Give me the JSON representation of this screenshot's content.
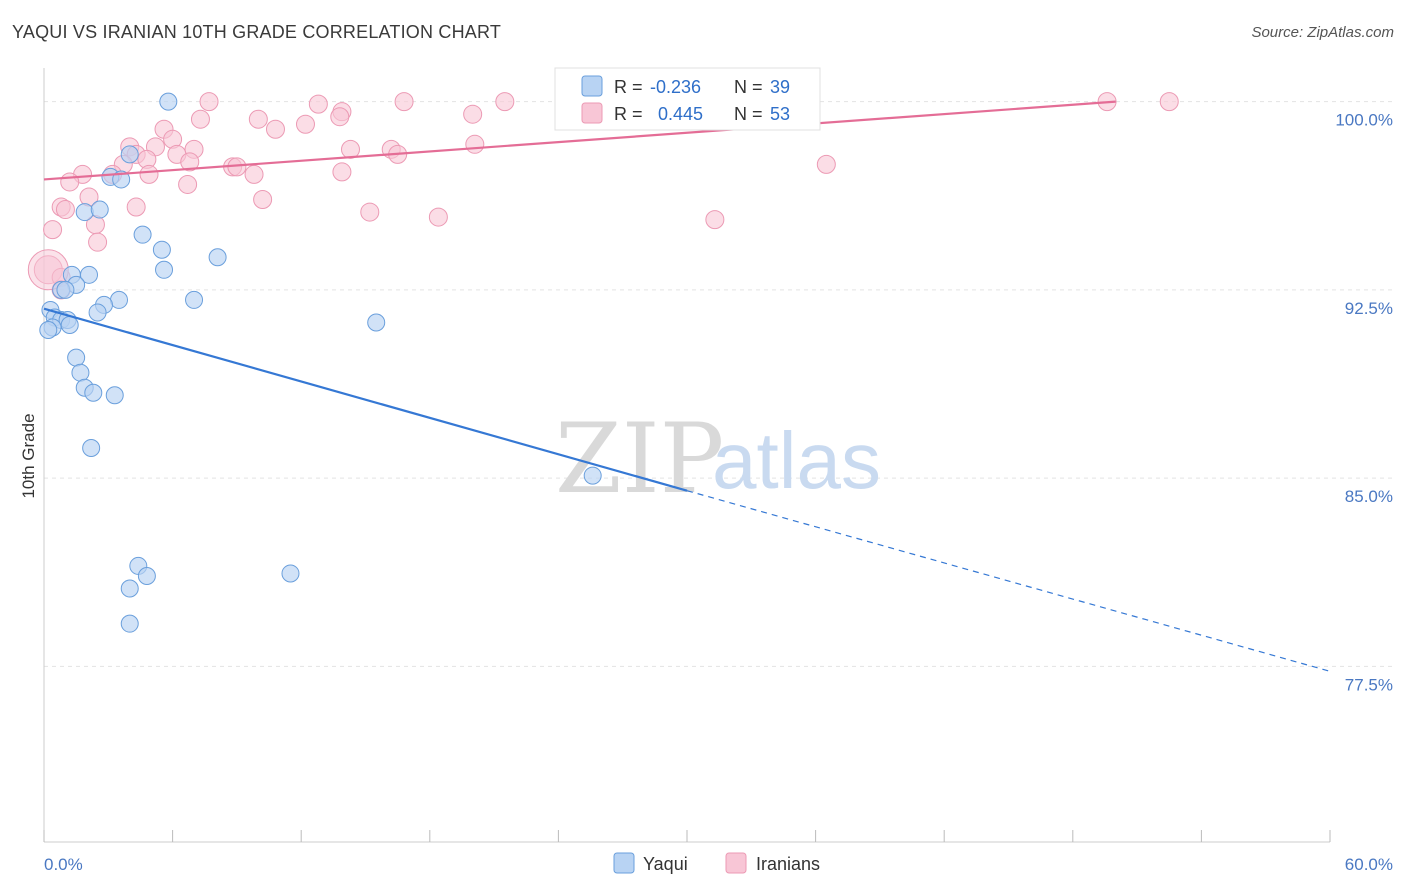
{
  "title": "YAQUI VS IRANIAN 10TH GRADE CORRELATION CHART",
  "source": "Source: ZipAtlas.com",
  "watermark": {
    "zip": "ZIP",
    "atlas": "atlas"
  },
  "colors": {
    "yaqui_fill": "#b8d3f3",
    "yaqui_stroke": "#6a9fdc",
    "yaqui_line": "#3578d4",
    "iranian_fill": "#f8c6d6",
    "iranian_stroke": "#ec9ab4",
    "iranian_line": "#e46d96",
    "grid": "#e3e3e3",
    "tick_label": "#4a78c2"
  },
  "legend": {
    "r_label": "R =",
    "n_label": "N =",
    "yaqui": {
      "r": "-0.236",
      "n": "39"
    },
    "iranian": {
      "r": "0.445",
      "n": "53"
    }
  },
  "bottom_legend": {
    "yaqui": "Yaqui",
    "iranian": "Iranians"
  },
  "chart_data": {
    "type": "scatter",
    "ylabel": "10th Grade",
    "xlim": [
      0,
      60
    ],
    "ylim": [
      70.5,
      101.5
    ],
    "x_tick_labels": {
      "min": "0.0%",
      "max": "60.0%"
    },
    "y_ticks": [
      {
        "value": 100.0,
        "label": "100.0%"
      },
      {
        "value": 92.5,
        "label": "92.5%"
      },
      {
        "value": 85.0,
        "label": "85.0%"
      },
      {
        "value": 77.5,
        "label": "77.5%"
      }
    ],
    "grid": true,
    "legend_position": "top-center",
    "series": [
      {
        "name": "Yaqui",
        "points": [
          [
            5.8,
            100.0
          ],
          [
            4.0,
            97.9
          ],
          [
            3.1,
            97.0
          ],
          [
            3.6,
            96.9
          ],
          [
            1.9,
            95.6
          ],
          [
            2.6,
            95.7
          ],
          [
            4.6,
            94.7
          ],
          [
            5.5,
            94.1
          ],
          [
            5.6,
            93.3
          ],
          [
            8.1,
            93.8
          ],
          [
            1.3,
            93.1
          ],
          [
            2.1,
            93.1
          ],
          [
            1.5,
            92.7
          ],
          [
            0.8,
            92.5
          ],
          [
            1.0,
            92.5
          ],
          [
            3.5,
            92.1
          ],
          [
            2.8,
            91.9
          ],
          [
            7.0,
            92.1
          ],
          [
            0.3,
            91.7
          ],
          [
            2.5,
            91.6
          ],
          [
            0.5,
            91.4
          ],
          [
            0.8,
            91.3
          ],
          [
            1.1,
            91.3
          ],
          [
            1.2,
            91.1
          ],
          [
            0.4,
            91.0
          ],
          [
            15.5,
            91.2
          ],
          [
            0.2,
            90.9
          ],
          [
            1.5,
            89.8
          ],
          [
            1.7,
            89.2
          ],
          [
            1.9,
            88.6
          ],
          [
            2.3,
            88.4
          ],
          [
            3.3,
            88.3
          ],
          [
            2.2,
            86.2
          ],
          [
            25.6,
            85.1
          ],
          [
            4.4,
            81.5
          ],
          [
            4.0,
            80.6
          ],
          [
            4.8,
            81.1
          ],
          [
            11.5,
            81.2
          ],
          [
            4.0,
            79.2
          ]
        ],
        "trend": {
          "x": [
            0,
            30
          ],
          "y": [
            91.75,
            84.5
          ]
        },
        "trend_dashed": {
          "x": [
            30,
            60
          ],
          "y": [
            84.5,
            77.3
          ]
        }
      },
      {
        "name": "Iranians",
        "points": [
          [
            7.7,
            100.0
          ],
          [
            12.8,
            99.9
          ],
          [
            16.8,
            100.0
          ],
          [
            21.5,
            100.0
          ],
          [
            35.5,
            100.0
          ],
          [
            49.6,
            100.0
          ],
          [
            52.5,
            100.0
          ],
          [
            13.9,
            99.6
          ],
          [
            13.8,
            99.4
          ],
          [
            7.3,
            99.3
          ],
          [
            10.0,
            99.3
          ],
          [
            5.6,
            98.9
          ],
          [
            10.8,
            98.9
          ],
          [
            12.2,
            99.1
          ],
          [
            6.0,
            98.5
          ],
          [
            20.1,
            98.3
          ],
          [
            4.0,
            98.2
          ],
          [
            5.2,
            98.2
          ],
          [
            7.0,
            98.1
          ],
          [
            14.3,
            98.1
          ],
          [
            16.2,
            98.1
          ],
          [
            4.3,
            97.9
          ],
          [
            6.2,
            97.9
          ],
          [
            16.5,
            97.9
          ],
          [
            4.8,
            97.7
          ],
          [
            3.7,
            97.5
          ],
          [
            6.8,
            97.6
          ],
          [
            8.8,
            97.4
          ],
          [
            9.0,
            97.4
          ],
          [
            36.5,
            97.5
          ],
          [
            13.9,
            97.2
          ],
          [
            1.8,
            97.1
          ],
          [
            3.2,
            97.1
          ],
          [
            4.9,
            97.1
          ],
          [
            9.8,
            97.1
          ],
          [
            1.2,
            96.8
          ],
          [
            6.7,
            96.7
          ],
          [
            2.1,
            96.2
          ],
          [
            10.2,
            96.1
          ],
          [
            0.8,
            95.8
          ],
          [
            1.0,
            95.7
          ],
          [
            4.3,
            95.8
          ],
          [
            15.2,
            95.6
          ],
          [
            18.4,
            95.4
          ],
          [
            31.3,
            95.3
          ],
          [
            2.4,
            95.1
          ],
          [
            0.4,
            94.9
          ],
          [
            2.5,
            94.4
          ],
          [
            0.2,
            93.3
          ],
          [
            0.8,
            93.0
          ],
          [
            0.8,
            92.5
          ],
          [
            35.5,
            99.7
          ],
          [
            20.0,
            99.5
          ]
        ],
        "trend": {
          "x": [
            0,
            50
          ],
          "y": [
            96.9,
            100.0
          ]
        }
      }
    ]
  }
}
